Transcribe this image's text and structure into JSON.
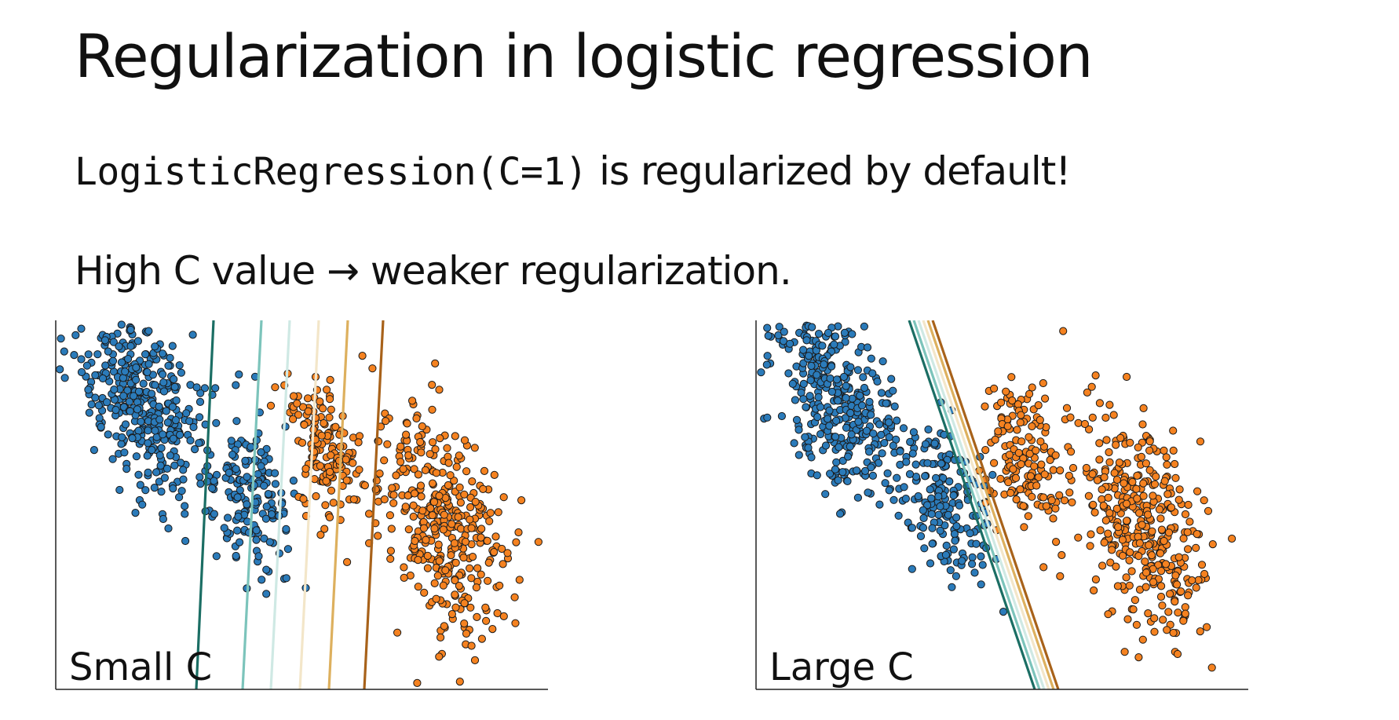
{
  "slide": {
    "title": "Regularization in logistic regression",
    "line1_code": "LogisticRegression(C=1)",
    "line1_text": " is regularized by default!",
    "line2_text": "High C value → weaker regularization."
  },
  "colors": {
    "class_a": "#2b7bba",
    "class_b": "#f58220",
    "boundaries": [
      "#1b6e64",
      "#7cc4bb",
      "#cfe9e4",
      "#f3e6c9",
      "#ddb05e",
      "#a8621a"
    ]
  },
  "plots": [
    {
      "label": "Small C"
    },
    {
      "label": "Large C"
    }
  ]
}
